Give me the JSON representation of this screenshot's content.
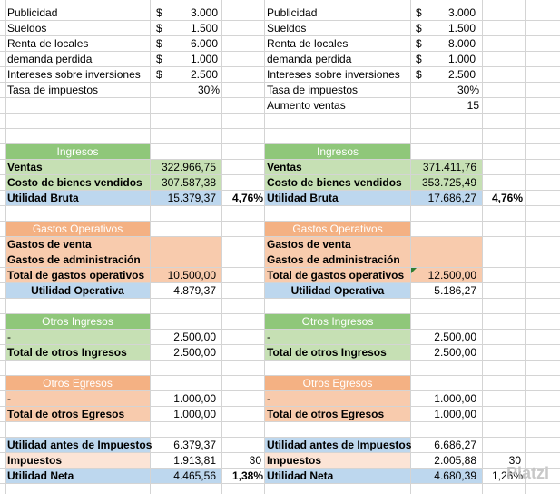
{
  "top_left": {
    "rows": [
      {
        "label": "Publicidad",
        "currency": "$",
        "value": "3.000"
      },
      {
        "label": "Sueldos",
        "currency": "$",
        "value": "1.500"
      },
      {
        "label": "Renta de locales",
        "currency": "$",
        "value": "6.000"
      },
      {
        "label": "demanda perdida",
        "currency": "$",
        "value": "1.000"
      },
      {
        "label": "Intereses sobre inversiones",
        "currency": "$",
        "value": "2.500"
      }
    ],
    "tax_label": "Tasa de impuestos",
    "tax_value": "30%"
  },
  "top_right": {
    "rows": [
      {
        "label": "Publicidad",
        "currency": "$",
        "value": "3.000"
      },
      {
        "label": "Sueldos",
        "currency": "$",
        "value": "1.500"
      },
      {
        "label": "Renta de locales",
        "currency": "$",
        "value": "8.000"
      },
      {
        "label": "demanda perdida",
        "currency": "$",
        "value": "1.000"
      },
      {
        "label": "Intereses sobre inversiones",
        "currency": "$",
        "value": "2.500"
      }
    ],
    "tax_label": "Tasa de impuestos",
    "tax_value": "30%",
    "increase_label": "Aumento ventas",
    "increase_value": "15"
  },
  "left": {
    "ingresos_header": "Ingresos",
    "ventas_label": "Ventas",
    "ventas_value": "322.966,75",
    "costo_label": "Costo de bienes vendidos",
    "costo_value": "307.587,38",
    "utilidad_bruta_label": "Utilidad Bruta",
    "utilidad_bruta_value": "15.379,37",
    "utilidad_bruta_pct": "4,76%",
    "gastos_header": "Gastos Operativos",
    "gastos_venta_label": "Gastos de venta",
    "gastos_admin_label": "Gastos de administración",
    "total_gastos_label": "Total de gastos operativos",
    "total_gastos_value": "10.500,00",
    "utilidad_operativa_label": "Utilidad Operativa",
    "utilidad_operativa_value": "4.879,37",
    "otros_ingresos_header": "Otros Ingresos",
    "otros_ingresos_dash": "-",
    "otros_ingresos_value": "2.500,00",
    "total_otros_ingresos_label": "Total de otros Ingresos",
    "total_otros_ingresos_value": "2.500,00",
    "otros_egresos_header": "Otros Egresos",
    "otros_egresos_dash": "-",
    "otros_egresos_value": "1.000,00",
    "total_otros_egresos_label": "Total de otros Egresos",
    "total_otros_egresos_value": "1.000,00",
    "uai_label": "Utilidad antes de Impuestos",
    "uai_value": "6.379,37",
    "impuestos_label": "Impuestos",
    "impuestos_value": "1.913,81",
    "impuestos_rate": "30",
    "utilidad_neta_label": "Utilidad Neta",
    "utilidad_neta_value": "4.465,56",
    "utilidad_neta_pct": "1,38%"
  },
  "right": {
    "ingresos_header": "Ingresos",
    "ventas_label": "Ventas",
    "ventas_value": "371.411,76",
    "costo_label": "Costo de bienes vendidos",
    "costo_value": "353.725,49",
    "utilidad_bruta_label": "Utilidad Bruta",
    "utilidad_bruta_value": "17.686,27",
    "utilidad_bruta_pct": "4,76%",
    "gastos_header": "Gastos Operativos",
    "gastos_venta_label": "Gastos de venta",
    "gastos_admin_label": "Gastos de administración",
    "total_gastos_label": "Total de gastos operativos",
    "total_gastos_value": "12.500,00",
    "utilidad_operativa_label": "Utilidad Operativa",
    "utilidad_operativa_value": "5.186,27",
    "otros_ingresos_header": "Otros Ingresos",
    "otros_ingresos_dash": "-",
    "otros_ingresos_value": "2.500,00",
    "total_otros_ingresos_label": "Total de otros Ingresos",
    "total_otros_ingresos_value": "2.500,00",
    "otros_egresos_header": "Otros Egresos",
    "otros_egresos_dash": "-",
    "otros_egresos_value": "1.000,00",
    "total_otros_egresos_label": "Total de otros Egresos",
    "total_otros_egresos_value": "1.000,00",
    "uai_label": "Utilidad antes de Impuestos",
    "uai_value": "6.686,27",
    "impuestos_label": "Impuestos",
    "impuestos_value": "2.005,88",
    "impuestos_rate": "30",
    "utilidad_neta_label": "Utilidad Neta",
    "utilidad_neta_value": "4.680,39",
    "utilidad_neta_pct": "1,26%"
  },
  "watermark": "Platzi",
  "colors": {
    "green_header": "#8fc77a",
    "green_row": "#c6e0b4",
    "orange_header": "#f4b183",
    "orange_row": "#f8cbad",
    "blue_row": "#bdd7ee",
    "grid": "#d4d4d4",
    "white_text": "#ffffff"
  }
}
